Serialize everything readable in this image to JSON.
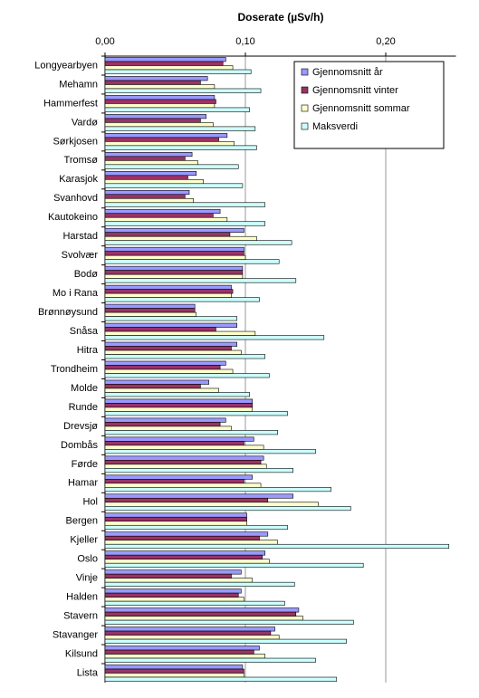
{
  "chart_data": {
    "type": "hbar",
    "title": "Doserate (µSv/h)",
    "categories": [
      "Longyearbyen",
      "Mehamn",
      "Hammerfest",
      "Vardø",
      "Sørkjosen",
      "Tromsø",
      "Karasjok",
      "Svanhovd",
      "Kautokeino",
      "Harstad",
      "Svolvær",
      "Bodø",
      "Mo i Rana",
      "Brønnøysund",
      "Snåsa",
      "Hitra",
      "Trondheim",
      "Molde",
      "Runde",
      "Drevsjø",
      "Dombås",
      "Førde",
      "Hamar",
      "Hol",
      "Bergen",
      "Kjeller",
      "Oslo",
      "Vinje",
      "Halden",
      "Stavern",
      "Stavanger",
      "Kilsund",
      "Lista"
    ],
    "series": [
      {
        "name": "Gjennomsnitt år",
        "color": "#9999ff",
        "values": [
          0.086,
          0.073,
          0.078,
          0.072,
          0.087,
          0.062,
          0.065,
          0.06,
          0.082,
          0.099,
          0.099,
          0.098,
          0.09,
          0.064,
          0.094,
          0.094,
          0.086,
          0.074,
          0.105,
          0.086,
          0.106,
          0.113,
          0.105,
          0.134,
          0.101,
          0.116,
          0.114,
          0.097,
          0.097,
          0.138,
          0.121,
          0.11,
          0.098
        ]
      },
      {
        "name": "Gjennomsnitt vinter",
        "color": "#993366",
        "values": [
          0.084,
          0.068,
          0.079,
          0.068,
          0.081,
          0.057,
          0.059,
          0.057,
          0.077,
          0.089,
          0.099,
          0.098,
          0.091,
          0.064,
          0.079,
          0.09,
          0.082,
          0.068,
          0.105,
          0.082,
          0.099,
          0.111,
          0.099,
          0.116,
          0.101,
          0.11,
          0.112,
          0.09,
          0.095,
          0.136,
          0.118,
          0.106,
          0.099
        ]
      },
      {
        "name": "Gjennomsnitt sommar",
        "color": "#ffffcc",
        "values": [
          0.091,
          0.078,
          0.078,
          0.077,
          0.092,
          0.066,
          0.07,
          0.063,
          0.087,
          0.108,
          0.1,
          0.098,
          0.09,
          0.065,
          0.107,
          0.097,
          0.091,
          0.081,
          0.105,
          0.09,
          0.113,
          0.115,
          0.111,
          0.152,
          0.101,
          0.123,
          0.117,
          0.105,
          0.099,
          0.141,
          0.124,
          0.114,
          0.099
        ]
      },
      {
        "name": "Maksverdi",
        "color": "#ccffff",
        "values": [
          0.104,
          0.111,
          0.103,
          0.107,
          0.108,
          0.095,
          0.098,
          0.114,
          0.114,
          0.133,
          0.124,
          0.136,
          0.11,
          0.094,
          0.156,
          0.114,
          0.117,
          0.103,
          0.13,
          0.123,
          0.15,
          0.134,
          0.161,
          0.175,
          0.13,
          0.245,
          0.184,
          0.135,
          0.128,
          0.177,
          0.172,
          0.15,
          0.165
        ]
      }
    ],
    "xlim": [
      0,
      0.25
    ],
    "xticks": [
      {
        "value": 0,
        "label": "0,00"
      },
      {
        "value": 0.1,
        "label": "0,10"
      },
      {
        "value": 0.2,
        "label": "0,20"
      }
    ],
    "grid": true,
    "legend": "top-right"
  }
}
